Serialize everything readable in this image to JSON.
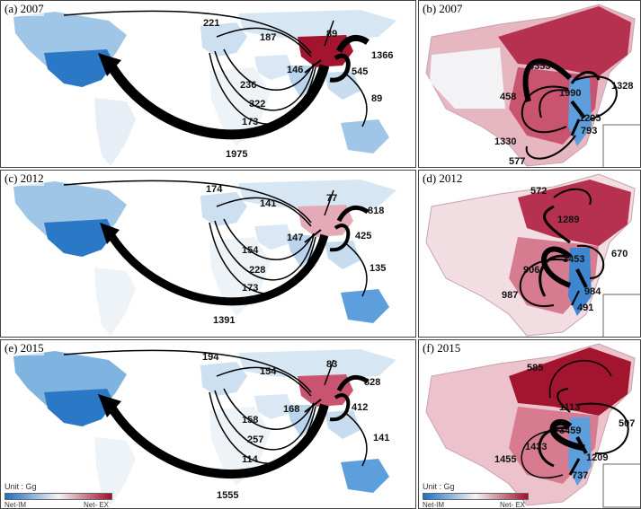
{
  "panels": {
    "a": {
      "title": "(a) 2007"
    },
    "b": {
      "title": "(b) 2007"
    },
    "c": {
      "title": "(c) 2012"
    },
    "d": {
      "title": "(d) 2012"
    },
    "e": {
      "title": "(e) 2015"
    },
    "f": {
      "title": "(f) 2015"
    }
  },
  "world_flows": {
    "a": {
      "north_america": "221",
      "europe": "187",
      "russia": "89",
      "japan_korea": "1366",
      "india": "146",
      "se_asia": "545",
      "middle_east": "236",
      "africa": "322",
      "south_america": "173",
      "australia": "89",
      "usa_main": "1975"
    },
    "c": {
      "north_america": "174",
      "europe": "141",
      "russia": "77",
      "japan_korea": "818",
      "india": "147",
      "se_asia": "425",
      "middle_east": "154",
      "africa": "228",
      "south_america": "173",
      "australia": "135",
      "usa_main": "1391"
    },
    "e": {
      "north_america": "194",
      "europe": "154",
      "russia": "83",
      "japan_korea": "828",
      "india": "168",
      "se_asia": "412",
      "middle_east": "158",
      "africa": "257",
      "south_america": "114",
      "australia": "141",
      "usa_main": "1555"
    }
  },
  "china_flows": {
    "b": {
      "f1": "3353",
      "f2": "1990",
      "f3": "1328",
      "f4": "458",
      "f5": "1330",
      "f6": "1205",
      "f7": "793",
      "f8": "577"
    },
    "d": {
      "f1": "572",
      "f2": "1289",
      "f3": "670",
      "f4": "906",
      "f5": "3453",
      "f6": "987",
      "f7": "984",
      "f8": "491"
    },
    "f": {
      "f1": "585",
      "f2": "1113",
      "f3": "507",
      "f4": "3459",
      "f5": "1433",
      "f6": "1455",
      "f7": "1209",
      "f8": "737"
    }
  },
  "legend": {
    "unit_left": "Unit : Gg",
    "netim_left": "Net-IM",
    "netex_left": "Net- EX",
    "unit_right": "Unit : Gg",
    "netim_right": "Net-IM",
    "netex_right": "Net- EX"
  },
  "colors": {
    "net_im": "#1f6fc1",
    "net_ex": "#a0102a",
    "arrow": "#000000"
  }
}
